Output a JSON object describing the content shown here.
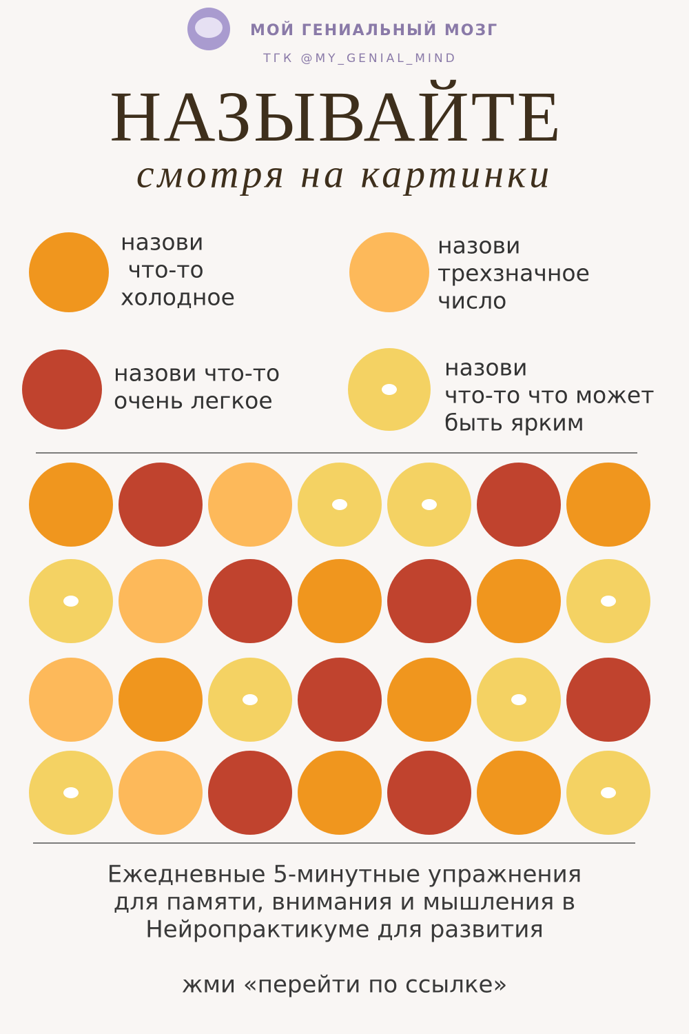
{
  "header": {
    "brand": "МОЙ ГЕНИАЛЬНЫЙ МОЗГ",
    "handle": "ТГК @MY_GENIAL_MIND",
    "title": "НАЗЫВАЙТЕ",
    "subtitle": "смотря на картинки"
  },
  "legend": [
    {
      "color": "#f0961e",
      "lines": [
        "назови",
        " что-то",
        "холодное"
      ]
    },
    {
      "color": "#fdb95a",
      "lines": [
        "назови",
        "трехзначное",
        "число"
      ]
    },
    {
      "color": "#c0432e",
      "lines": [
        "назови что-то",
        "очень легкое"
      ]
    },
    {
      "color": "#f4d263",
      "hole": true,
      "lines": [
        "назови",
        "что-то что может",
        "быть ярким"
      ]
    }
  ],
  "grid": [
    [
      "#f0961e",
      "#c0432e",
      "#fdb95a",
      "#f4d263",
      "#f4d263",
      "#c0432e",
      "#f0961e"
    ],
    [
      "#f4d263",
      "#fdb95a",
      "#c0432e",
      "#f0961e",
      "#c0432e",
      "#f0961e",
      "#f4d263"
    ],
    [
      "#fdb95a",
      "#f0961e",
      "#f4d263",
      "#c0432e",
      "#f0961e",
      "#f4d263",
      "#c0432e"
    ],
    [
      "#f4d263",
      "#fdb95a",
      "#c0432e",
      "#f0961e",
      "#c0432e",
      "#f0961e",
      "#f4d263"
    ]
  ],
  "footer": {
    "lines": [
      "Ежедневные 5-минутные упражнения",
      "для памяти, внимания и мышления в",
      "Нейропрактикуме для развития"
    ],
    "cta": "жми «перейти по ссылке»"
  }
}
